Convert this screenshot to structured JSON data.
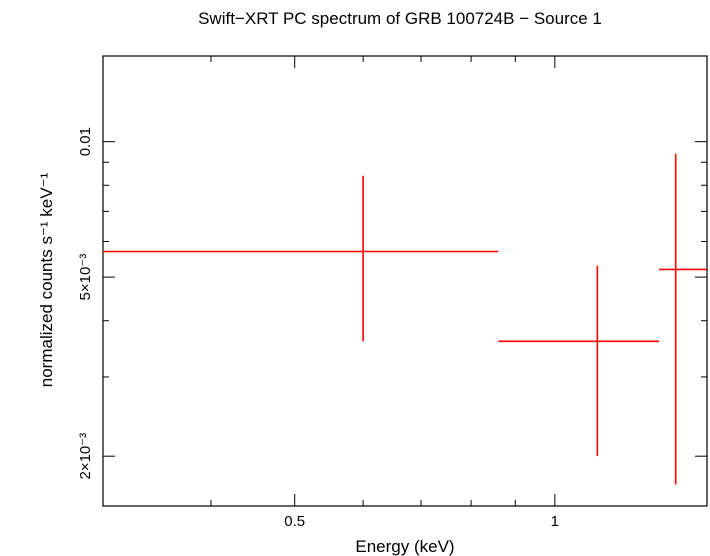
{
  "chart_data": {
    "type": "scatter",
    "title": "Swift−XRT PC spectrum of GRB 100724B − Source 1",
    "xlabel": "Energy (keV)",
    "ylabel": "normalized counts s⁻¹ keV⁻¹",
    "xscale": "log",
    "yscale": "log",
    "xlim": [
      0.3,
      1.5
    ],
    "ylim": [
      0.00155,
      0.0155
    ],
    "grid": false,
    "legend": "none",
    "x_ticks": [
      {
        "value": 0.5,
        "label": "0.5"
      },
      {
        "value": 1,
        "label": "1"
      }
    ],
    "y_ticks": [
      {
        "value": 0.002,
        "label": "2×10⁻³"
      },
      {
        "value": 0.005,
        "label": "5×10⁻³"
      },
      {
        "value": 0.01,
        "label": "0.01"
      }
    ],
    "series": [
      {
        "color": "#ff0000",
        "points": [
          {
            "x": 0.6,
            "x_lo": 0.3,
            "x_hi": 0.86,
            "y": 0.0057,
            "y_lo": 0.0036,
            "y_hi": 0.0084
          },
          {
            "x": 1.12,
            "x_lo": 0.86,
            "x_hi": 1.32,
            "y": 0.0036,
            "y_lo": 0.002,
            "y_hi": 0.0053
          },
          {
            "x": 1.38,
            "x_lo": 1.32,
            "x_hi": 1.5,
            "y": 0.0052,
            "y_lo": 0.00173,
            "y_hi": 0.0094
          }
        ]
      }
    ]
  }
}
